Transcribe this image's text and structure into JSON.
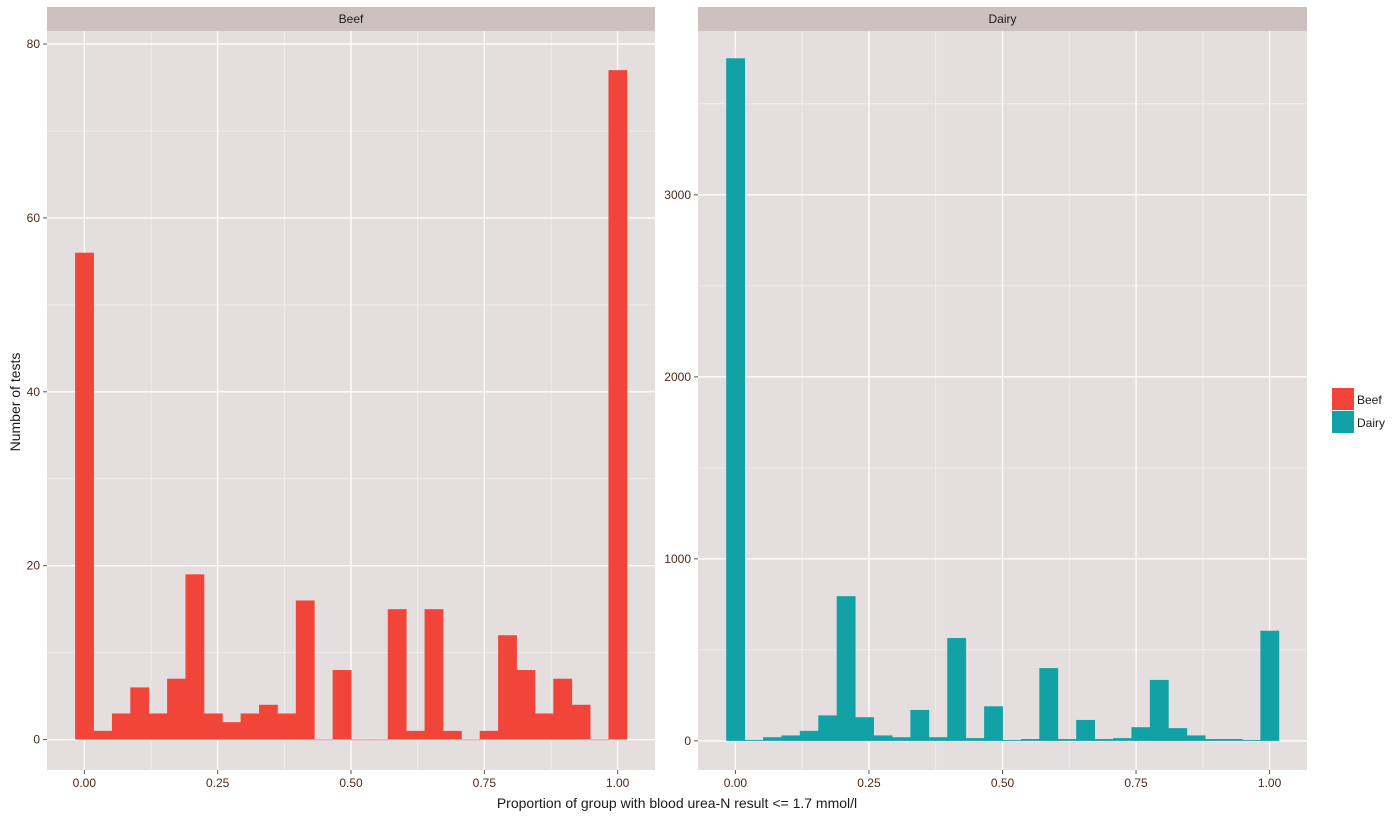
{
  "chart_data": {
    "type": "bar",
    "subtype": "faceted-histogram",
    "xlabel": "Proportion of group with blood urea-N result <= 1.7 mmol/l",
    "ylabel": "Number of tests",
    "grid": true,
    "legend_position": "right",
    "legend": [
      {
        "name": "Beef",
        "color": "#F1453A"
      },
      {
        "name": "Dairy",
        "color": "#12A1A4"
      }
    ],
    "bin_width": 0.0345,
    "bin_centers": [
      0,
      0.0345,
      0.069,
      0.1034,
      0.1379,
      0.1724,
      0.2069,
      0.2414,
      0.2759,
      0.3103,
      0.3448,
      0.3793,
      0.4138,
      0.4483,
      0.4828,
      0.5172,
      0.5517,
      0.5862,
      0.6207,
      0.6552,
      0.6897,
      0.7241,
      0.7586,
      0.7931,
      0.8276,
      0.8621,
      0.8966,
      0.931,
      0.9655,
      1.0
    ],
    "panels": [
      {
        "title": "Beef",
        "color": "#F1453A",
        "xlim": [
          -0.07,
          1.07
        ],
        "ylim": [
          -3.5,
          81.5
        ],
        "x_ticks": [
          0,
          0.25,
          0.5,
          0.75,
          1.0
        ],
        "x_tick_labels": [
          "0.00",
          "0.25",
          "0.50",
          "0.75",
          "1.00"
        ],
        "y_ticks": [
          0,
          20,
          40,
          60,
          80
        ],
        "y_tick_labels": [
          "0",
          "20",
          "40",
          "60",
          "80"
        ],
        "counts": [
          56,
          1,
          3,
          6,
          3,
          7,
          19,
          3,
          2,
          3,
          4,
          3,
          16,
          0,
          8,
          0,
          0,
          15,
          1,
          15,
          1,
          0,
          1,
          12,
          8,
          3,
          7,
          4,
          0,
          77
        ]
      },
      {
        "title": "Dairy",
        "color": "#12A1A4",
        "xlim": [
          -0.07,
          1.07
        ],
        "ylim": [
          -160,
          3900
        ],
        "x_ticks": [
          0,
          0.25,
          0.5,
          0.75,
          1.0
        ],
        "x_tick_labels": [
          "0.00",
          "0.25",
          "0.50",
          "0.75",
          "1.00"
        ],
        "y_ticks": [
          0,
          1000,
          2000,
          3000
        ],
        "y_tick_labels": [
          "0",
          "1000",
          "2000",
          "3000"
        ],
        "counts": [
          3750,
          5,
          20,
          30,
          55,
          140,
          795,
          130,
          30,
          20,
          170,
          20,
          565,
          15,
          190,
          5,
          10,
          400,
          10,
          115,
          10,
          15,
          75,
          335,
          70,
          30,
          10,
          10,
          5,
          605
        ]
      }
    ]
  }
}
